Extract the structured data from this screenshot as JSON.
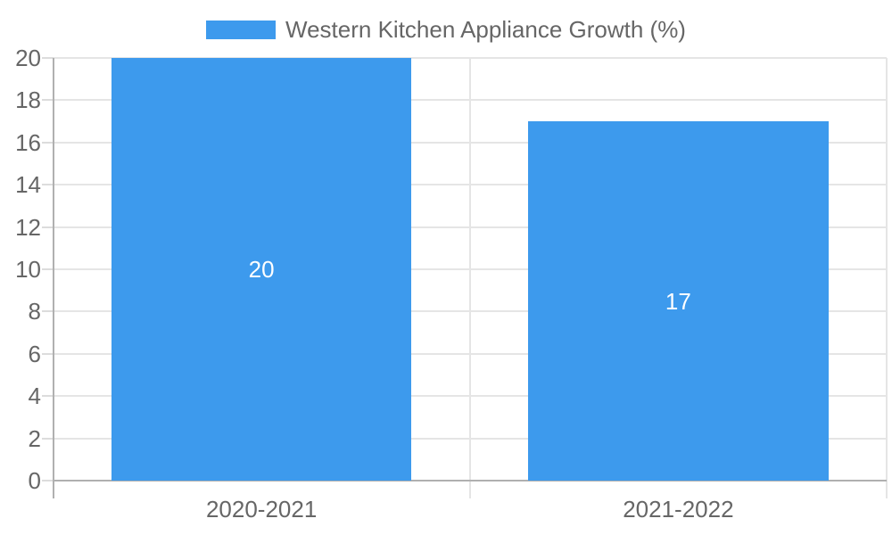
{
  "chart_data": {
    "type": "bar",
    "title": "",
    "legend": {
      "label": "Western Kitchen Appliance Growth (%)",
      "position": "top"
    },
    "categories": [
      "2020-2021",
      "2021-2022"
    ],
    "series": [
      {
        "name": "Western Kitchen Appliance Growth (%)",
        "color": "#3d9aed",
        "values": [
          20,
          17
        ]
      }
    ],
    "bar_value_labels": [
      "20",
      "17"
    ],
    "xlabel": "",
    "ylabel": "",
    "ylim": [
      0,
      20
    ],
    "yticks": [
      0,
      2,
      4,
      6,
      8,
      10,
      12,
      14,
      16,
      18,
      20
    ],
    "grid": true,
    "bar_label_position": "center"
  },
  "colors": {
    "bar": "#3d9aed",
    "grid": "#e5e5e5",
    "axis_line": "#b0b0b0",
    "tick_mark": "#dcdcdc",
    "label_text": "#666666",
    "bar_label_text": "#ffffff",
    "background": "#ffffff"
  }
}
